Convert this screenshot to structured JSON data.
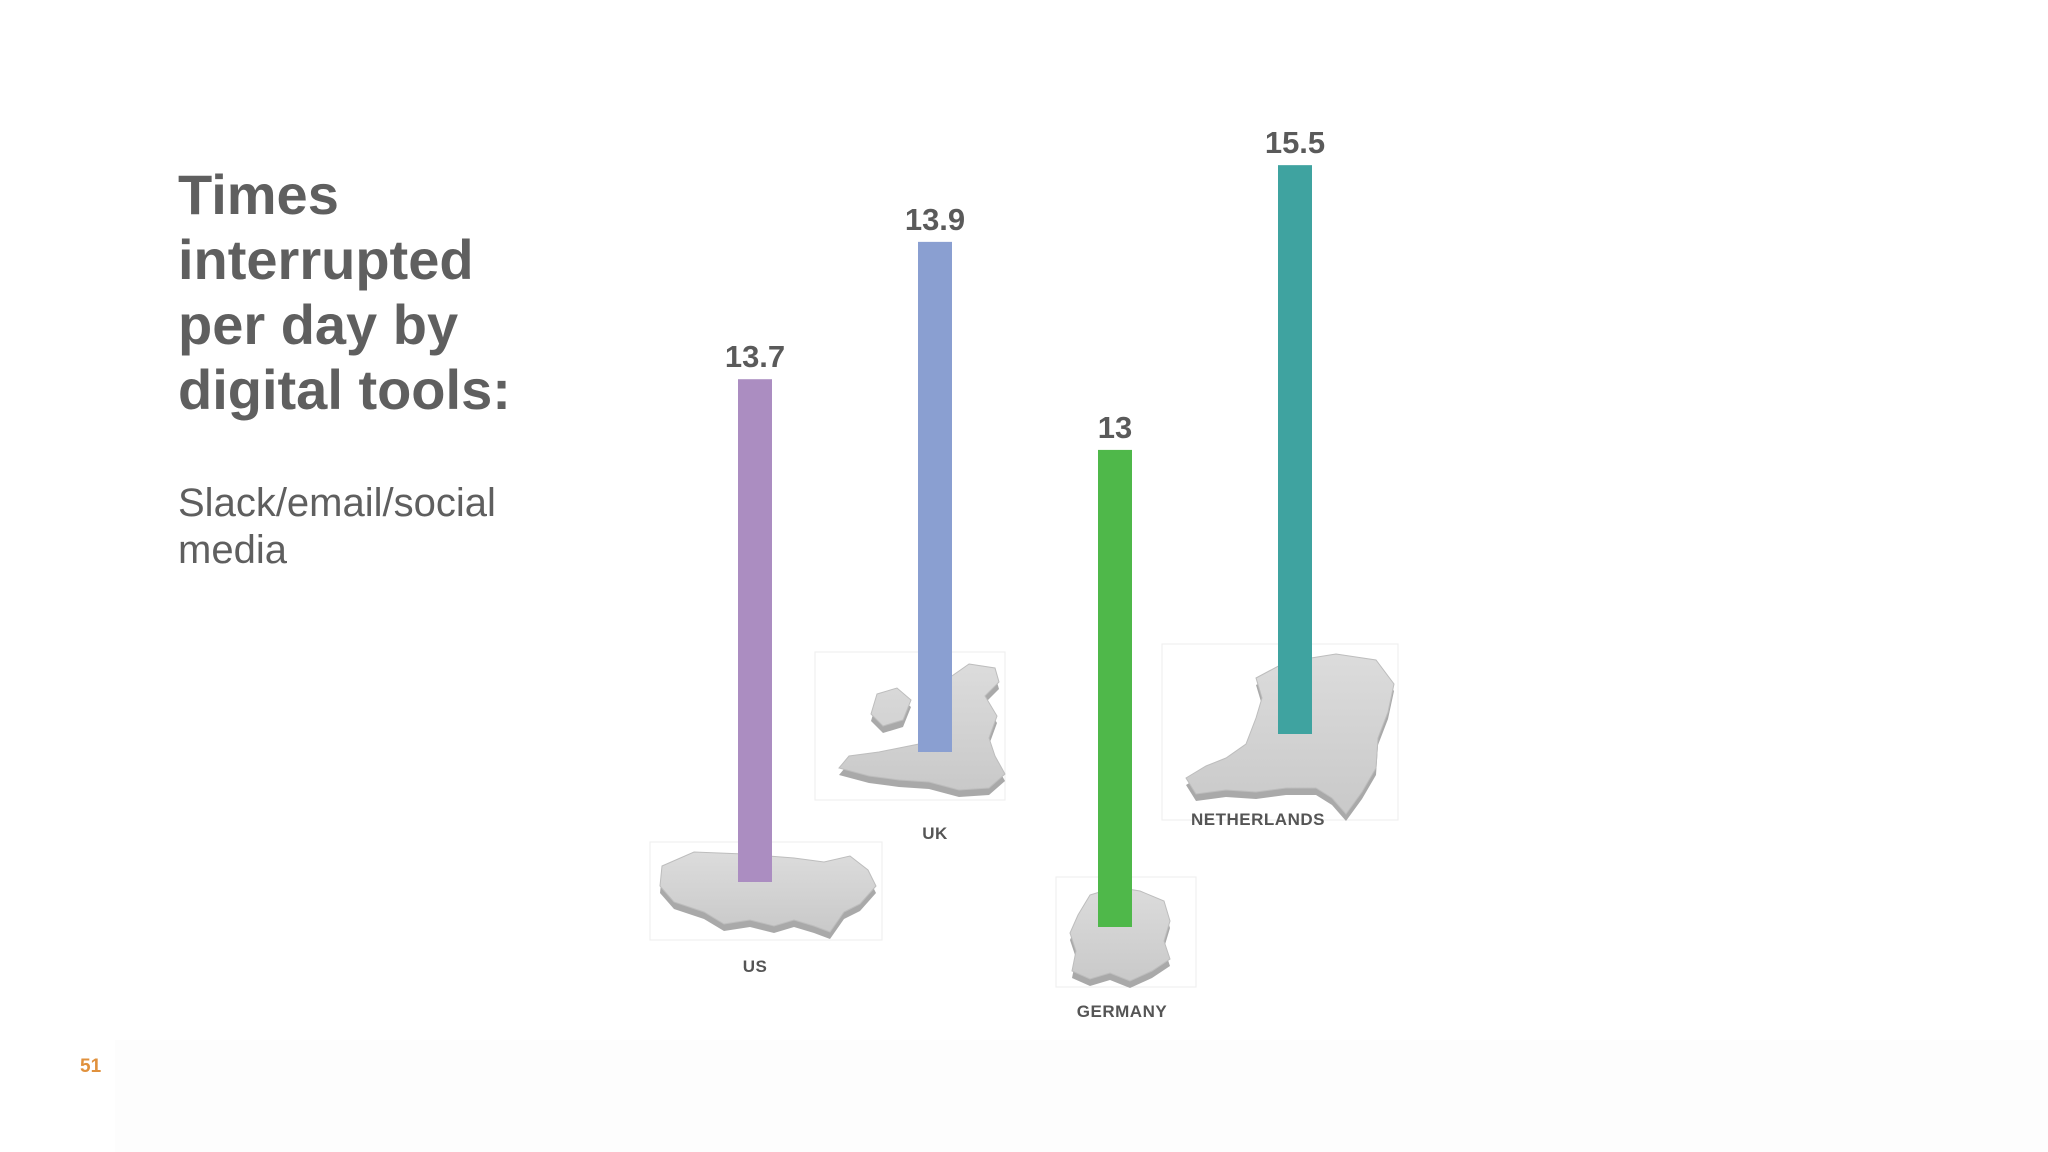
{
  "slide": {
    "title": "Times\ninterrupted\nper day by\ndigital tools:",
    "subtitle": "Slack/email/social\nmedia",
    "page_number": "51"
  },
  "chart_data": {
    "type": "bar",
    "title": "Times interrupted per day by digital tools:",
    "subtitle": "Slack/email/social media",
    "categories": [
      "US",
      "UK",
      "GERMANY",
      "NETHERLANDS"
    ],
    "values": [
      13.7,
      13.9,
      13,
      15.5
    ],
    "value_labels": [
      "13.7",
      "13.9",
      "13",
      "15.5"
    ],
    "colors": [
      "#ab8dc1",
      "#8a9fd1",
      "#4fb84a",
      "#3fa3a0"
    ],
    "icons": [
      "us-map-icon",
      "uk-map-icon",
      "germany-map-icon",
      "netherlands-map-icon"
    ],
    "xlabel": "",
    "ylabel": "",
    "grid": false
  }
}
